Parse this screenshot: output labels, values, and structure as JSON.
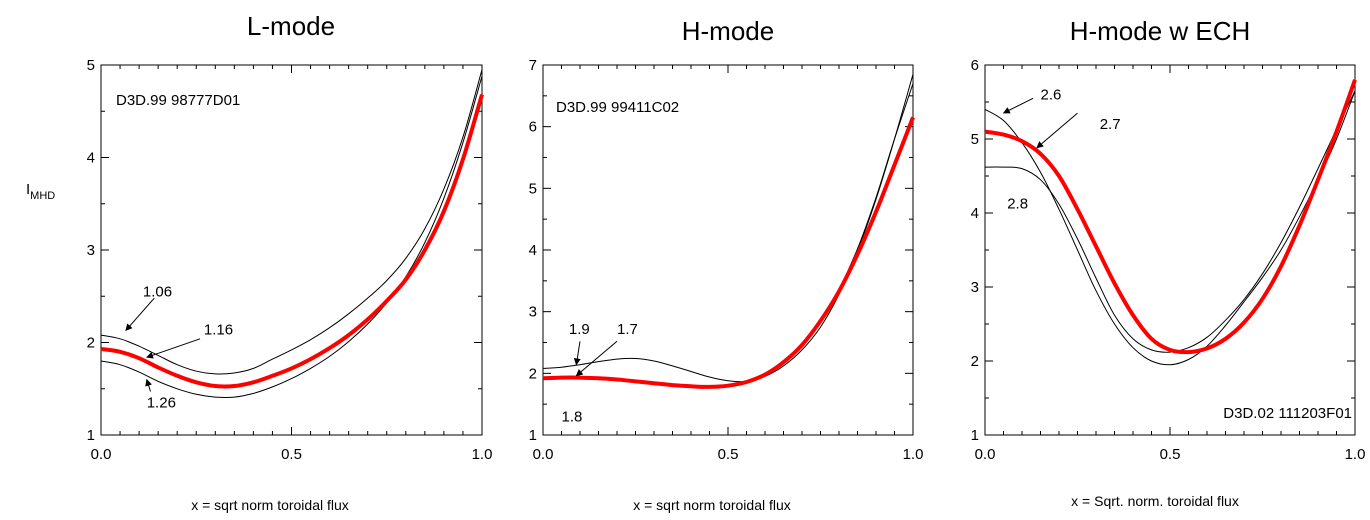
{
  "colors": {
    "thin": "#000000",
    "highlight": "#ff0000"
  },
  "ylabel_main": "I",
  "ylabel_sub": "MHD",
  "chart_data": [
    {
      "type": "line",
      "title": "L-mode",
      "xlabel": "x = sqrt norm toroidal flux",
      "xlim": [
        0,
        1
      ],
      "ylim": [
        1,
        5
      ],
      "xticks": [
        0,
        0.5,
        1
      ],
      "xtick_labels": [
        "0.0",
        "0.5",
        "1.0"
      ],
      "yticks": [
        1,
        2,
        3,
        4,
        5
      ],
      "ytick_labels": [
        "1",
        "2",
        "3",
        "4",
        "5"
      ],
      "annotation_text": "D3D.99 98777D01",
      "series": [
        {
          "name": "1.06",
          "highlight": false,
          "x": [
            0.0,
            0.05,
            0.1,
            0.15,
            0.2,
            0.25,
            0.3,
            0.35,
            0.4,
            0.45,
            0.5,
            0.55,
            0.6,
            0.65,
            0.7,
            0.75,
            0.8,
            0.85,
            0.9,
            0.95,
            1.0
          ],
          "y": [
            2.08,
            2.04,
            1.96,
            1.86,
            1.76,
            1.69,
            1.66,
            1.67,
            1.72,
            1.82,
            1.92,
            2.03,
            2.16,
            2.31,
            2.48,
            2.67,
            2.91,
            3.23,
            3.66,
            4.22,
            4.95
          ]
        },
        {
          "name": "1.16",
          "highlight": true,
          "x": [
            0.0,
            0.05,
            0.1,
            0.15,
            0.2,
            0.25,
            0.3,
            0.35,
            0.4,
            0.45,
            0.5,
            0.55,
            0.6,
            0.65,
            0.7,
            0.75,
            0.8,
            0.85,
            0.9,
            0.95,
            1.0
          ],
          "y": [
            1.93,
            1.9,
            1.83,
            1.73,
            1.64,
            1.57,
            1.53,
            1.53,
            1.57,
            1.64,
            1.72,
            1.82,
            1.94,
            2.08,
            2.25,
            2.45,
            2.68,
            3.0,
            3.42,
            3.98,
            4.68
          ]
        },
        {
          "name": "1.26",
          "highlight": false,
          "x": [
            0.0,
            0.05,
            0.1,
            0.15,
            0.2,
            0.25,
            0.3,
            0.35,
            0.4,
            0.45,
            0.5,
            0.55,
            0.6,
            0.65,
            0.7,
            0.75,
            0.8,
            0.85,
            0.9,
            0.95,
            1.0
          ],
          "y": [
            1.8,
            1.76,
            1.68,
            1.58,
            1.5,
            1.44,
            1.41,
            1.41,
            1.45,
            1.52,
            1.61,
            1.72,
            1.85,
            2.01,
            2.2,
            2.43,
            2.71,
            3.08,
            3.56,
            4.16,
            4.88
          ]
        }
      ],
      "labels": [
        {
          "text": "1.06",
          "x": 0.11,
          "y": 2.55,
          "ax": 0.14,
          "ay": 2.48,
          "tx": 0.065,
          "ty": 2.13
        },
        {
          "text": "1.16",
          "x": 0.27,
          "y": 2.14,
          "ax": 0.26,
          "ay": 2.04,
          "tx": 0.12,
          "ty": 1.84
        },
        {
          "text": "1.26",
          "x": 0.12,
          "y": 1.35,
          "ax": 0.13,
          "ay": 1.47,
          "tx": 0.12,
          "ty": 1.6
        }
      ]
    },
    {
      "type": "line",
      "title": "H-mode",
      "xlabel": "x = sqrt norm toroidal flux",
      "xlim": [
        0,
        1
      ],
      "ylim": [
        1,
        7
      ],
      "xticks": [
        0,
        0.5,
        1
      ],
      "xtick_labels": [
        "0.0",
        "0.5",
        "1.0"
      ],
      "yticks": [
        1,
        2,
        3,
        4,
        5,
        6,
        7
      ],
      "ytick_labels": [
        "1",
        "2",
        "3",
        "4",
        "5",
        "6",
        "7"
      ],
      "annotation_text": "D3D.99 99411C02",
      "series": [
        {
          "name": "1.9",
          "highlight": false,
          "x": [
            0.0,
            0.05,
            0.1,
            0.15,
            0.2,
            0.25,
            0.3,
            0.35,
            0.4,
            0.45,
            0.5,
            0.55,
            0.6,
            0.65,
            0.7,
            0.75,
            0.8,
            0.85,
            0.9,
            0.95,
            1.0
          ],
          "y": [
            2.08,
            2.1,
            2.14,
            2.19,
            2.23,
            2.24,
            2.2,
            2.12,
            2.03,
            1.94,
            1.88,
            1.87,
            1.95,
            2.12,
            2.38,
            2.75,
            3.28,
            3.98,
            4.82,
            5.8,
            6.85
          ]
        },
        {
          "name": "1.7",
          "highlight": true,
          "x": [
            0.0,
            0.05,
            0.1,
            0.15,
            0.2,
            0.25,
            0.3,
            0.35,
            0.4,
            0.45,
            0.5,
            0.55,
            0.6,
            0.65,
            0.7,
            0.75,
            0.8,
            0.85,
            0.9,
            0.95,
            1.0
          ],
          "y": [
            1.92,
            1.93,
            1.93,
            1.92,
            1.9,
            1.87,
            1.84,
            1.81,
            1.79,
            1.78,
            1.8,
            1.86,
            1.98,
            2.18,
            2.46,
            2.85,
            3.33,
            3.93,
            4.62,
            5.38,
            6.15
          ]
        },
        {
          "name": "1.8",
          "highlight": false,
          "x": [
            0.0,
            0.05,
            0.1,
            0.15,
            0.2,
            0.25,
            0.3,
            0.35,
            0.4,
            0.45,
            0.5,
            0.55,
            0.6,
            0.65,
            0.7,
            0.75,
            0.8,
            0.85,
            0.9,
            0.95,
            1.0
          ],
          "y": [
            1.93,
            1.94,
            1.94,
            1.93,
            1.9,
            1.87,
            1.83,
            1.8,
            1.78,
            1.77,
            1.78,
            1.84,
            1.97,
            2.17,
            2.44,
            2.84,
            3.36,
            4.02,
            4.85,
            5.8,
            6.7
          ]
        }
      ],
      "labels": [
        {
          "text": "1.9",
          "x": 0.07,
          "y": 2.72,
          "ax": 0.1,
          "ay": 2.52,
          "tx": 0.09,
          "ty": 2.14
        },
        {
          "text": "1.7",
          "x": 0.2,
          "y": 2.72,
          "ax": 0.2,
          "ay": 2.52,
          "tx": 0.09,
          "ty": 1.96
        },
        {
          "text": "1.8",
          "x": 0.05,
          "y": 1.3,
          "ax": null,
          "ay": null,
          "tx": null,
          "ty": null
        }
      ]
    },
    {
      "type": "line",
      "title": "H-mode w ECH",
      "xlabel": "x = Sqrt. norm. toroidal flux",
      "xlim": [
        0,
        1
      ],
      "ylim": [
        1,
        6
      ],
      "xticks": [
        0,
        0.5,
        1
      ],
      "xtick_labels": [
        "0.0",
        "0.5",
        "1.0"
      ],
      "yticks": [
        1,
        2,
        3,
        4,
        5,
        6
      ],
      "ytick_labels": [
        "1",
        "2",
        "3",
        "4",
        "5",
        "6"
      ],
      "annotation_text": "D3D.02 111203F01",
      "series": [
        {
          "name": "2.6",
          "highlight": false,
          "x": [
            0.0,
            0.05,
            0.1,
            0.15,
            0.2,
            0.25,
            0.3,
            0.35,
            0.4,
            0.45,
            0.5,
            0.55,
            0.6,
            0.65,
            0.7,
            0.75,
            0.8,
            0.85,
            0.9,
            0.95,
            1.0
          ],
          "y": [
            5.4,
            5.25,
            4.95,
            4.55,
            4.05,
            3.5,
            2.95,
            2.5,
            2.18,
            2.0,
            1.95,
            2.02,
            2.2,
            2.48,
            2.8,
            3.13,
            3.5,
            3.95,
            4.45,
            5.0,
            5.65
          ]
        },
        {
          "name": "2.7",
          "highlight": true,
          "x": [
            0.0,
            0.05,
            0.1,
            0.15,
            0.2,
            0.25,
            0.3,
            0.35,
            0.4,
            0.45,
            0.5,
            0.55,
            0.6,
            0.65,
            0.7,
            0.75,
            0.8,
            0.85,
            0.9,
            0.95,
            1.0
          ],
          "y": [
            5.1,
            5.06,
            4.97,
            4.8,
            4.5,
            4.05,
            3.55,
            3.05,
            2.62,
            2.3,
            2.15,
            2.12,
            2.17,
            2.3,
            2.52,
            2.84,
            3.28,
            3.83,
            4.45,
            5.1,
            5.8
          ]
        },
        {
          "name": "2.8",
          "highlight": false,
          "x": [
            0.0,
            0.05,
            0.1,
            0.15,
            0.2,
            0.25,
            0.3,
            0.35,
            0.4,
            0.45,
            0.5,
            0.55,
            0.6,
            0.65,
            0.7,
            0.75,
            0.8,
            0.85,
            0.9,
            0.95,
            1.0
          ],
          "y": [
            4.62,
            4.62,
            4.6,
            4.45,
            4.12,
            3.65,
            3.12,
            2.62,
            2.3,
            2.15,
            2.12,
            2.18,
            2.32,
            2.55,
            2.83,
            3.18,
            3.6,
            4.08,
            4.6,
            5.13,
            5.65
          ]
        }
      ],
      "labels": [
        {
          "text": "2.6",
          "x": 0.15,
          "y": 5.6,
          "ax": 0.13,
          "ay": 5.55,
          "tx": 0.05,
          "ty": 5.35
        },
        {
          "text": "2.7",
          "x": 0.31,
          "y": 5.2,
          "ax": 0.25,
          "ay": 5.35,
          "tx": 0.14,
          "ty": 4.88
        },
        {
          "text": "2.8",
          "x": 0.06,
          "y": 4.13,
          "ax": null,
          "ay": null,
          "tx": null,
          "ty": null
        }
      ]
    }
  ]
}
